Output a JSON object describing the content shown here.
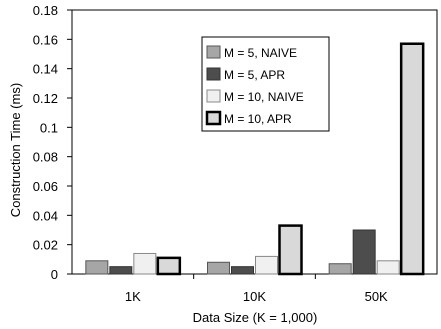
{
  "chart_data": {
    "type": "bar",
    "categories": [
      "1K",
      "10K",
      "50K"
    ],
    "series": [
      {
        "name": "M = 5,  NAIVE",
        "values": [
          0.009,
          0.008,
          0.007
        ],
        "fill": "#a6a6a6",
        "stroke": "#555555",
        "stroke_width": 1
      },
      {
        "name": "M = 5,  APR",
        "values": [
          0.005,
          0.005,
          0.03
        ],
        "fill": "#4d4d4d",
        "stroke": "#333333",
        "stroke_width": 1
      },
      {
        "name": "M = 10, NAIVE",
        "values": [
          0.014,
          0.012,
          0.009
        ],
        "fill": "#f0f0f0",
        "stroke": "#888888",
        "stroke_width": 1
      },
      {
        "name": "M = 10, APR",
        "values": [
          0.011,
          0.033,
          0.157
        ],
        "fill": "#d9d9d9",
        "stroke": "#000000",
        "stroke_width": 2.5
      }
    ],
    "xlabel": "Data Size (K = 1,000)",
    "ylabel": "Construction Time (ms)",
    "ylim": [
      0,
      0.18
    ],
    "yticks": [
      "0",
      "0.02",
      "0.04",
      "0.06",
      "0.08",
      "0.1",
      "0.12",
      "0.14",
      "0.16",
      "0.18"
    ],
    "grid": false,
    "legend_position": "top-center"
  }
}
